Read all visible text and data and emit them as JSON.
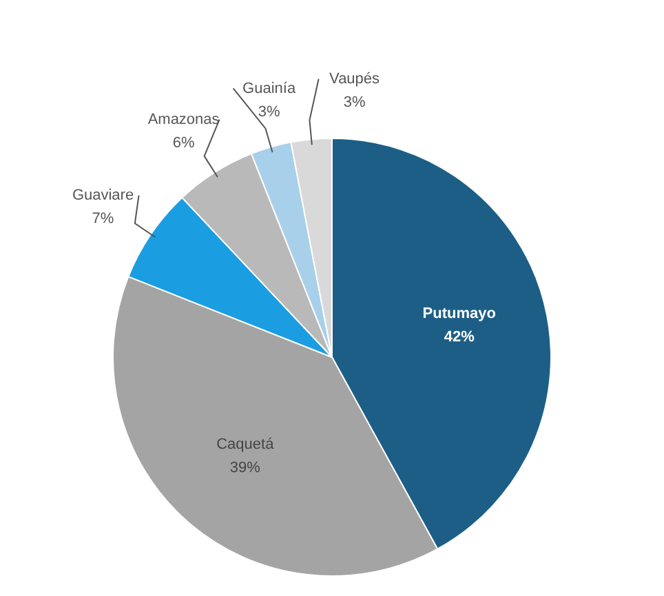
{
  "chart_data": {
    "type": "pie",
    "categories": [
      "Putumayo",
      "Caquetá",
      "Guaviare",
      "Amazonas",
      "Guainía",
      "Vaupés"
    ],
    "values": [
      42,
      39,
      7,
      6,
      3,
      3
    ],
    "value_labels": [
      "42%",
      "39%",
      "7%",
      "6%",
      "3%",
      "3%"
    ],
    "colors": [
      "#1d5e86",
      "#a4a4a4",
      "#1b9de2",
      "#b9b9b9",
      "#a8d0ea",
      "#d9d9d9"
    ],
    "legend": false
  }
}
